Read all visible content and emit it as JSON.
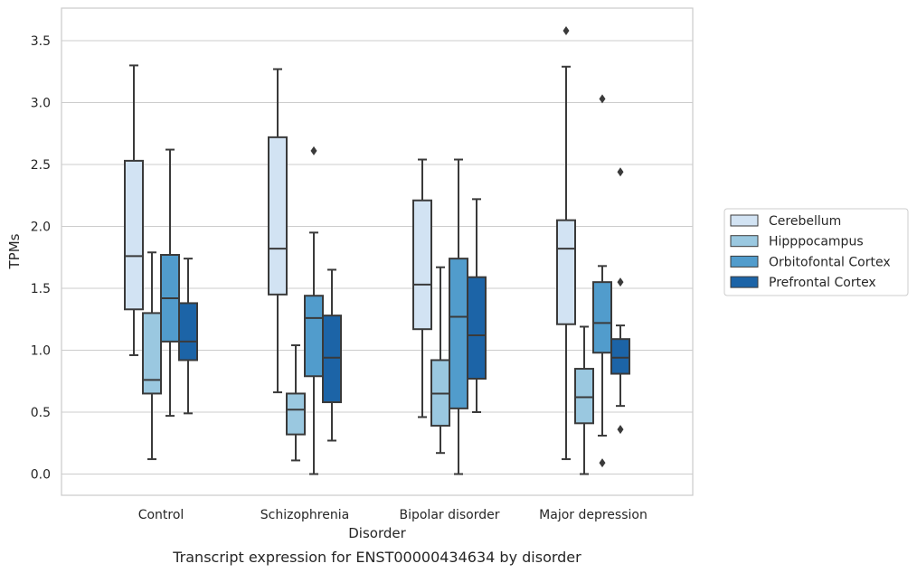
{
  "chart_data": {
    "type": "box",
    "caption": "Transcript expression for ENST00000434634 by disorder",
    "xlabel": "Disorder",
    "ylabel": "TPMs",
    "ylim": [
      -0.17,
      3.75
    ],
    "yticks": [
      "0.0",
      "0.5",
      "1.0",
      "1.5",
      "2.0",
      "2.5",
      "3.0",
      "3.5"
    ],
    "grid": "horizontal",
    "legend_position": "right",
    "categories": [
      "Control",
      "Schizophrenia",
      "Bipolar disorder",
      "Major depression"
    ],
    "series": [
      {
        "name": "Cerebellum",
        "color": "#d2e3f3",
        "boxes": [
          {
            "whislo": 0.96,
            "q1": 1.33,
            "med": 1.76,
            "q3": 2.53,
            "whishi": 3.3,
            "fliers": []
          },
          {
            "whislo": 0.66,
            "q1": 1.45,
            "med": 1.82,
            "q3": 2.72,
            "whishi": 3.27,
            "fliers": []
          },
          {
            "whislo": 0.46,
            "q1": 1.17,
            "med": 1.53,
            "q3": 2.21,
            "whishi": 2.54,
            "fliers": []
          },
          {
            "whislo": 0.12,
            "q1": 1.21,
            "med": 1.82,
            "q3": 2.05,
            "whishi": 3.29,
            "fliers": [
              3.58
            ]
          }
        ]
      },
      {
        "name": "Hipppocampus",
        "color": "#9ac8e0",
        "boxes": [
          {
            "whislo": 0.12,
            "q1": 0.65,
            "med": 0.76,
            "q3": 1.3,
            "whishi": 1.79,
            "fliers": []
          },
          {
            "whislo": 0.11,
            "q1": 0.32,
            "med": 0.52,
            "q3": 0.65,
            "whishi": 1.04,
            "fliers": []
          },
          {
            "whislo": 0.17,
            "q1": 0.39,
            "med": 0.65,
            "q3": 0.92,
            "whishi": 1.67,
            "fliers": []
          },
          {
            "whislo": 0.0,
            "q1": 0.41,
            "med": 0.62,
            "q3": 0.85,
            "whishi": 1.19,
            "fliers": []
          }
        ]
      },
      {
        "name": "Orbitofontal Cortex",
        "color": "#519ccc",
        "boxes": [
          {
            "whislo": 0.47,
            "q1": 1.07,
            "med": 1.42,
            "q3": 1.77,
            "whishi": 2.62,
            "fliers": []
          },
          {
            "whislo": 0.0,
            "q1": 0.79,
            "med": 1.26,
            "q3": 1.44,
            "whishi": 1.95,
            "fliers": [
              2.61
            ]
          },
          {
            "whislo": 0.0,
            "q1": 0.53,
            "med": 1.27,
            "q3": 1.74,
            "whishi": 2.54,
            "fliers": []
          },
          {
            "whislo": 0.31,
            "q1": 0.98,
            "med": 1.22,
            "q3": 1.55,
            "whishi": 1.68,
            "fliers": [
              3.03,
              0.09
            ]
          }
        ]
      },
      {
        "name": "Prefrontal Cortex",
        "color": "#1c64a7",
        "boxes": [
          {
            "whislo": 0.49,
            "q1": 0.92,
            "med": 1.07,
            "q3": 1.38,
            "whishi": 1.74,
            "fliers": []
          },
          {
            "whislo": 0.27,
            "q1": 0.58,
            "med": 0.94,
            "q3": 1.28,
            "whishi": 1.65,
            "fliers": []
          },
          {
            "whislo": 0.5,
            "q1": 0.77,
            "med": 1.12,
            "q3": 1.59,
            "whishi": 2.22,
            "fliers": []
          },
          {
            "whislo": 0.55,
            "q1": 0.81,
            "med": 0.94,
            "q3": 1.09,
            "whishi": 1.2,
            "fliers": [
              2.44,
              1.55,
              0.36
            ]
          }
        ]
      }
    ]
  }
}
